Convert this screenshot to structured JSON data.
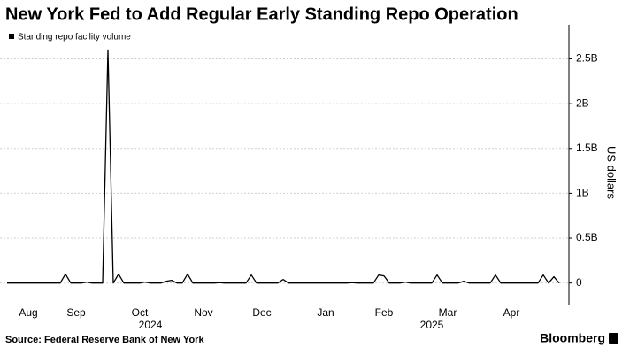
{
  "chart_data": {
    "type": "line",
    "title": "New York Fed to Add Regular Early Standing Repo Operation",
    "y_label": "US dollars",
    "source": "Source: Federal Reserve Bank of New York",
    "brand": "Bloomberg",
    "legend": "top-left",
    "grid": true,
    "categories": [
      null,
      null,
      null,
      null,
      "Aug",
      null,
      null,
      null,
      null,
      null,
      null,
      null,
      null,
      "Sep",
      null,
      null,
      null,
      null,
      null,
      null,
      null,
      null,
      null,
      null,
      null,
      "Oct",
      null,
      null,
      null,
      null,
      null,
      null,
      null,
      null,
      null,
      null,
      null,
      "Nov",
      null,
      null,
      null,
      null,
      null,
      null,
      null,
      null,
      null,
      null,
      "Dec",
      null,
      null,
      null,
      null,
      null,
      null,
      null,
      null,
      null,
      null,
      null,
      "Jan",
      null,
      null,
      null,
      null,
      null,
      null,
      null,
      null,
      null,
      null,
      "Feb",
      null,
      null,
      null,
      null,
      null,
      null,
      null,
      null,
      null,
      null,
      null,
      "Mar",
      null,
      null,
      null,
      null,
      null,
      null,
      null,
      null,
      null,
      null,
      null,
      "Apr",
      null,
      null,
      null,
      null,
      null,
      null,
      null,
      null,
      null
    ],
    "x_groups": [
      null,
      null,
      null,
      null,
      null,
      null,
      null,
      null,
      null,
      null,
      null,
      null,
      null,
      null,
      null,
      null,
      null,
      null,
      null,
      null,
      null,
      null,
      null,
      null,
      null,
      null,
      null,
      "2024",
      null,
      null,
      null,
      null,
      null,
      null,
      null,
      null,
      null,
      null,
      null,
      null,
      null,
      null,
      null,
      null,
      null,
      null,
      null,
      null,
      null,
      null,
      null,
      null,
      null,
      null,
      null,
      null,
      null,
      null,
      null,
      null,
      null,
      null,
      null,
      null,
      null,
      null,
      null,
      null,
      null,
      null,
      null,
      null,
      null,
      null,
      null,
      null,
      null,
      null,
      null,
      null,
      "2025",
      null,
      null,
      null,
      null,
      null,
      null,
      null,
      null,
      null,
      null,
      null,
      null,
      null,
      null,
      null,
      null,
      null,
      null,
      null,
      null,
      null,
      null,
      null,
      null
    ],
    "series": [
      {
        "name": "Standing repo facility volume",
        "color": "#000000",
        "values": [
          0,
          0,
          0,
          0,
          0,
          0,
          0,
          0,
          0,
          0,
          0,
          100000000,
          0,
          0,
          0,
          10000000,
          0,
          0,
          0,
          2600000000,
          0,
          100000000,
          0,
          0,
          0,
          0,
          10000000,
          0,
          0,
          0,
          20000000,
          30000000,
          0,
          0,
          100000000,
          0,
          0,
          0,
          0,
          0,
          5000000,
          0,
          0,
          0,
          0,
          0,
          90000000,
          0,
          0,
          0,
          0,
          0,
          40000000,
          0,
          0,
          0,
          0,
          0,
          0,
          0,
          0,
          0,
          0,
          0,
          0,
          5000000,
          0,
          0,
          0,
          0,
          90000000,
          80000000,
          0,
          0,
          0,
          10000000,
          0,
          0,
          0,
          0,
          0,
          90000000,
          0,
          0,
          0,
          0,
          20000000,
          0,
          0,
          0,
          0,
          0,
          90000000,
          0,
          0,
          0,
          0,
          0,
          0,
          0,
          0,
          90000000,
          0,
          70000000,
          0
        ]
      }
    ],
    "ylim": [
      -250000000,
      2880000000
    ],
    "yticks": [
      0,
      {
        "value": 500000000,
        "label": "0.5B"
      },
      {
        "value": 1000000000,
        "label": "1B"
      },
      {
        "value": 1500000000,
        "label": "1.5B"
      },
      {
        "value": 2000000000,
        "label": "2B"
      },
      {
        "value": 2500000000,
        "label": "2.5B"
      }
    ]
  }
}
